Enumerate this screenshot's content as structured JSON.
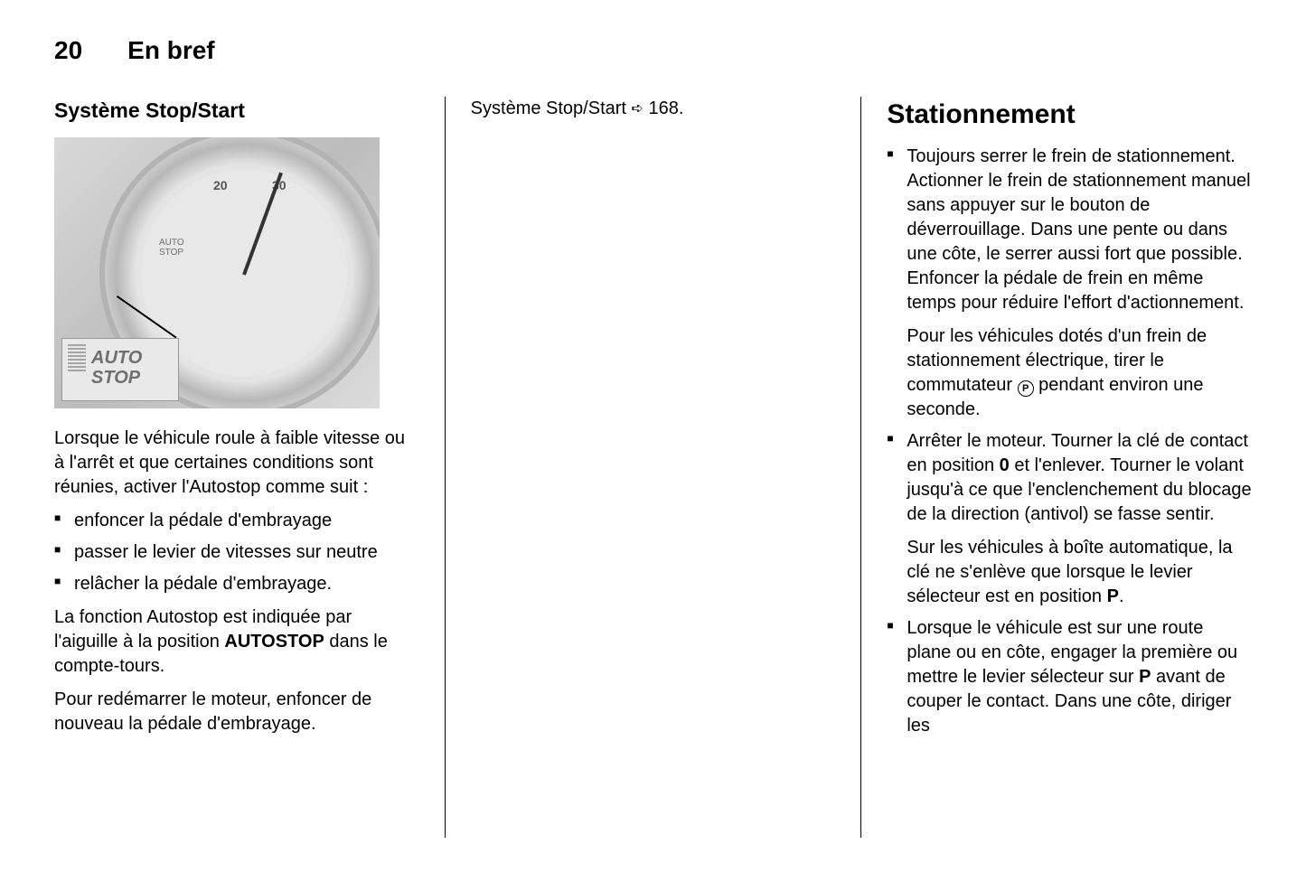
{
  "header": {
    "page_number": "20",
    "chapter": "En bref"
  },
  "col1": {
    "heading": "Système Stop/Start",
    "figure": {
      "gauge_numbers": {
        "n20": "20",
        "n30": "30"
      },
      "gauge_label": "AUTO\nSTOP",
      "callout": "AUTO\nSTOP"
    },
    "intro": "Lorsque le véhicule roule à faible vi­tesse ou à l'arrêt et que certaines con­ditions sont réunies, activer l'Autos­top comme suit :",
    "bullets": [
      "enfoncer la pédale d'embrayage",
      "passer le levier de vitesses sur neu­tre",
      "relâcher la pédale d'embrayage."
    ],
    "para2a": "La fonction Autostop est indiquée par l'aiguille à la position ",
    "para2_bold": "AUTOSTOP",
    "para2b": " dans le compte-tours.",
    "para3": "Pour redémarrer le moteur, enfoncer de nouveau la pédale d'embrayage."
  },
  "col2": {
    "ref_text_a": "Système Stop/Start ",
    "ref_text_b": " 168."
  },
  "col3": {
    "heading": "Stationnement",
    "item1_p1": "Toujours serrer le frein de station­nement. Actionner le frein de sta­tionnement manuel sans appuyer sur le bouton de déverrouillage. Dans une pente ou dans une côte, le serrer aussi fort que possible. Enfoncer la pédale de frein en même temps pour réduire l'effort d'actionnement.",
    "item1_p2a": "Pour les véhicules dotés d'un frein de stationnement électrique, tirer le commutateur ",
    "item1_p2b": " pendant environ une seconde.",
    "park_icon_letter": "P",
    "item2_p1a": "Arrêter le moteur. Tourner la clé de contact en position ",
    "item2_p1_bold0": "0",
    "item2_p1b": " et l'enlever. Tourner le volant jusqu'à ce que l'enclenchement du blocage de la direction (antivol) se fasse sentir.",
    "item2_p2a": "Sur les véhicules à boîte automati­que, la clé ne s'enlève que lorsque le levier sélecteur est en position ",
    "item2_p2_boldP": "P",
    "item2_p2b": ".",
    "item3a": "Lorsque le véhicule est sur une route plane ou en côte, engager la première ou mettre le levier sélec­teur sur ",
    "item3_boldP": "P",
    "item3b": " avant de couper le con­tact. Dans une côte, diriger les"
  }
}
